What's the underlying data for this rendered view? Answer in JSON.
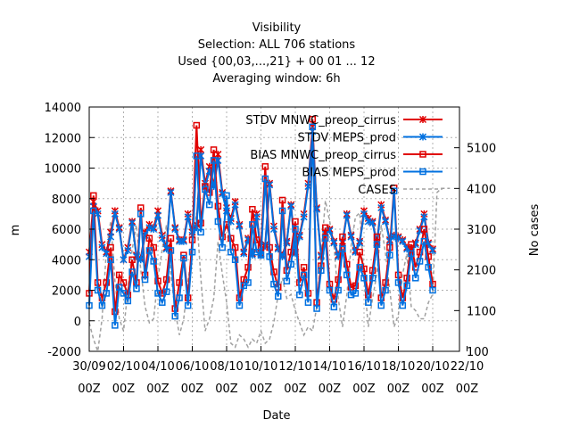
{
  "chart_data": {
    "type": "line",
    "title_lines": [
      "Visibility",
      "Selection: ALL    706 stations",
      "Used {00,03,...,21} + 00 01 ... 12",
      "Averaging window:  6h"
    ],
    "xlabel": "Date",
    "ylabel": "m",
    "y2label": "No cases",
    "x_range": [
      0,
      20
    ],
    "ylim": [
      -2000,
      14000
    ],
    "y2lim": [
      100,
      6100
    ],
    "x_ticks": [
      {
        "x": 0,
        "line1": "30/09",
        "line2": "00Z"
      },
      {
        "x": 2,
        "line1": "02/10",
        "line2": "00Z"
      },
      {
        "x": 4,
        "line1": "04/10",
        "line2": "00Z"
      },
      {
        "x": 6,
        "line1": "06/10",
        "line2": "00Z"
      },
      {
        "x": 8,
        "line1": "08/10",
        "line2": "00Z"
      },
      {
        "x": 10,
        "line1": "10/10",
        "line2": "00Z"
      },
      {
        "x": 12,
        "line1": "12/10",
        "line2": "00Z"
      },
      {
        "x": 14,
        "line1": "14/10",
        "line2": "00Z"
      },
      {
        "x": 16,
        "line1": "16/10",
        "line2": "00Z"
      },
      {
        "x": 18,
        "line1": "18/10",
        "line2": "00Z"
      },
      {
        "x": 20,
        "line1": "20/10",
        "line2": "00Z"
      },
      {
        "x": 22,
        "line1": "22/10",
        "line2": "00Z"
      }
    ],
    "y_ticks": [
      -2000,
      0,
      2000,
      4000,
      6000,
      8000,
      10000,
      12000,
      14000
    ],
    "y2_ticks": [
      100,
      1100,
      2100,
      3100,
      4100,
      5100
    ],
    "grid": true,
    "legend_position": "top-right",
    "series": [
      {
        "name": "STDV MNWC_preop_cirrus",
        "axis": "y",
        "color": "#e00000",
        "marker": "star",
        "style": "solid",
        "x": [
          0,
          0.25,
          0.5,
          0.75,
          1,
          1.25,
          1.5,
          1.75,
          2,
          2.25,
          2.5,
          2.75,
          3,
          3.25,
          3.5,
          3.75,
          4,
          4.25,
          4.5,
          4.75,
          5,
          5.25,
          5.5,
          5.75,
          6,
          6.25,
          6.5,
          6.75,
          7,
          7.25,
          7.5,
          7.75,
          8,
          8.25,
          8.5,
          8.75,
          9,
          9.25,
          9.5,
          9.75,
          10,
          10.25,
          10.5,
          10.75,
          11,
          11.25,
          11.5,
          11.75,
          12,
          12.25,
          12.5,
          12.75,
          13,
          13.25,
          13.5,
          13.75,
          14,
          14.25,
          14.5,
          14.75,
          15,
          15.25,
          15.5,
          15.75,
          16,
          16.25,
          16.5,
          16.75,
          17,
          17.25,
          17.5,
          17.75,
          18,
          18.25,
          18.5,
          18.75,
          19,
          19.25,
          19.5,
          19.75,
          20
        ],
        "y": [
          4500,
          7800,
          7200,
          5000,
          4500,
          5800,
          7200,
          6100,
          4000,
          4800,
          6500,
          4300,
          4100,
          5800,
          6300,
          6100,
          7200,
          5600,
          4800,
          8500,
          6100,
          5300,
          5300,
          7000,
          5800,
          6300,
          11200,
          9000,
          10100,
          8900,
          10900,
          8400,
          7400,
          6700,
          7800,
          6300,
          4500,
          5400,
          4400,
          7000,
          4400,
          5000,
          9000,
          6200,
          4800,
          4300,
          5200,
          7600,
          4500,
          5600,
          7000,
          9000,
          12700,
          7400,
          4300,
          5800,
          6000,
          5200,
          4300,
          5200,
          7000,
          5600,
          4600,
          5200,
          7200,
          6700,
          6500,
          5100,
          7600,
          6600,
          5300,
          5600,
          5500,
          5300,
          4800,
          4600,
          5100,
          6000,
          7000,
          5100,
          4700
        ]
      },
      {
        "name": "STDV MEPS_prod",
        "axis": "y",
        "color": "#0070e0",
        "marker": "star",
        "style": "solid",
        "x": [
          0,
          0.25,
          0.5,
          0.75,
          1,
          1.25,
          1.5,
          1.75,
          2,
          2.25,
          2.5,
          2.75,
          3,
          3.25,
          3.5,
          3.75,
          4,
          4.25,
          4.5,
          4.75,
          5,
          5.25,
          5.5,
          5.75,
          6,
          6.25,
          6.5,
          6.75,
          7,
          7.25,
          7.5,
          7.75,
          8,
          8.25,
          8.5,
          8.75,
          9,
          9.25,
          9.5,
          9.75,
          10,
          10.25,
          10.5,
          10.75,
          11,
          11.25,
          11.5,
          11.75,
          12,
          12.25,
          12.5,
          12.75,
          13,
          13.25,
          13.5,
          13.75,
          14,
          14.25,
          14.5,
          14.75,
          15,
          15.25,
          15.5,
          15.75,
          16,
          16.25,
          16.5,
          16.75,
          17,
          17.25,
          17.5,
          17.75,
          18,
          18.25,
          18.5,
          18.75,
          19,
          19.25,
          19.5,
          19.75,
          20
        ],
        "y": [
          4200,
          7500,
          7000,
          4800,
          4400,
          5500,
          7000,
          6000,
          4000,
          4600,
          6400,
          4200,
          4000,
          5600,
          6100,
          6000,
          6900,
          5400,
          4700,
          8400,
          6000,
          5200,
          5200,
          6800,
          5600,
          6100,
          10800,
          8800,
          9800,
          8800,
          10500,
          8300,
          7200,
          6500,
          7600,
          6200,
          4400,
          5300,
          4300,
          6800,
          4300,
          4900,
          8900,
          6000,
          4700,
          4200,
          5100,
          7500,
          4400,
          5500,
          6800,
          8800,
          12400,
          7300,
          4200,
          5700,
          5900,
          5100,
          4200,
          5100,
          6900,
          5500,
          4500,
          5100,
          7000,
          6500,
          6400,
          5000,
          7400,
          6500,
          5200,
          5500,
          5400,
          5200,
          4700,
          4500,
          5000,
          5900,
          6800,
          5000,
          4600
        ]
      },
      {
        "name": "BIAS MNWC_preop_cirrus",
        "axis": "y",
        "color": "#e00000",
        "marker": "square",
        "style": "solid",
        "x": [
          0,
          0.25,
          0.5,
          0.75,
          1,
          1.25,
          1.5,
          1.75,
          2,
          2.25,
          2.5,
          2.75,
          3,
          3.25,
          3.5,
          3.75,
          4,
          4.25,
          4.5,
          4.75,
          5,
          5.25,
          5.5,
          5.75,
          6,
          6.25,
          6.5,
          6.75,
          7,
          7.25,
          7.5,
          7.75,
          8,
          8.25,
          8.5,
          8.75,
          9,
          9.25,
          9.5,
          9.75,
          10,
          10.25,
          10.5,
          10.75,
          11,
          11.25,
          11.5,
          11.75,
          12,
          12.25,
          12.5,
          12.75,
          13,
          13.25,
          13.5,
          13.75,
          14,
          14.25,
          14.5,
          14.75,
          15,
          15.25,
          15.5,
          15.75,
          16,
          16.25,
          16.5,
          16.75,
          17,
          17.25,
          17.5,
          17.75,
          18,
          18.25,
          18.5,
          18.75,
          19,
          19.25,
          19.5,
          19.75,
          20
        ],
        "y": [
          1800,
          8200,
          2500,
          1500,
          2500,
          4800,
          600,
          3000,
          2500,
          1700,
          4000,
          2500,
          7400,
          3000,
          5400,
          4800,
          2600,
          1800,
          2700,
          5400,
          800,
          2500,
          4300,
          1500,
          5300,
          12800,
          6400,
          8800,
          8400,
          11200,
          7500,
          5500,
          6300,
          5400,
          4800,
          1500,
          2700,
          3500,
          7300,
          5300,
          4800,
          10100,
          4800,
          3200,
          2200,
          7900,
          3300,
          4500,
          6500,
          2500,
          3500,
          1800,
          13200,
          1200,
          3600,
          6100,
          2400,
          1400,
          2700,
          5500,
          3700,
          2200,
          2300,
          4500,
          3400,
          1700,
          3300,
          5500,
          1500,
          2500,
          4800,
          8700,
          3000,
          1500,
          2800,
          5000,
          3500,
          4500,
          6000,
          4200,
          2400
        ]
      },
      {
        "name": "BIAS MEPS_prod",
        "axis": "y",
        "color": "#0070e0",
        "marker": "square",
        "style": "solid",
        "x": [
          0,
          0.25,
          0.5,
          0.75,
          1,
          1.25,
          1.5,
          1.75,
          2,
          2.25,
          2.5,
          2.75,
          3,
          3.25,
          3.5,
          3.75,
          4,
          4.25,
          4.5,
          4.75,
          5,
          5.25,
          5.5,
          5.75,
          6,
          6.25,
          6.5,
          6.75,
          7,
          7.25,
          7.5,
          7.75,
          8,
          8.25,
          8.5,
          8.75,
          9,
          9.25,
          9.5,
          9.75,
          10,
          10.25,
          10.5,
          10.75,
          11,
          11.25,
          11.5,
          11.75,
          12,
          12.25,
          12.5,
          12.75,
          13,
          13.25,
          13.5,
          13.75,
          14,
          14.25,
          14.5,
          14.75,
          15,
          15.25,
          15.5,
          15.75,
          16,
          16.25,
          16.5,
          16.75,
          17,
          17.25,
          17.5,
          17.75,
          18,
          18.25,
          18.5,
          18.75,
          19,
          19.25,
          19.5,
          19.75,
          20
        ],
        "y": [
          1000,
          7200,
          2000,
          1000,
          1800,
          4000,
          -300,
          2200,
          1800,
          1300,
          3200,
          2100,
          7000,
          2700,
          4600,
          3900,
          1800,
          1200,
          1900,
          4600,
          300,
          1500,
          4100,
          1000,
          4500,
          10800,
          5800,
          8600,
          7600,
          10500,
          6500,
          4800,
          8200,
          4500,
          4000,
          1000,
          2300,
          2500,
          6300,
          4500,
          4300,
          9300,
          4200,
          2400,
          1600,
          7200,
          2600,
          3700,
          6000,
          1700,
          3000,
          1200,
          12700,
          800,
          3300,
          5400,
          2000,
          900,
          2000,
          4700,
          3000,
          1700,
          1800,
          3500,
          2800,
          1200,
          2800,
          5000,
          1000,
          2000,
          4300,
          8500,
          2500,
          1000,
          2300,
          4400,
          2800,
          3900,
          5200,
          3500,
          2000
        ]
      },
      {
        "name": "CASES",
        "axis": "y2",
        "color": "#a0a0a0",
        "marker": "none",
        "style": "dashed",
        "x": [
          0,
          0.25,
          0.5,
          0.75,
          1,
          1.25,
          1.5,
          1.75,
          2,
          2.25,
          2.5,
          2.75,
          3,
          3.25,
          3.5,
          3.75,
          4,
          4.25,
          4.5,
          4.75,
          5,
          5.25,
          5.5,
          5.75,
          6,
          6.25,
          6.5,
          6.75,
          7,
          7.25,
          7.5,
          7.75,
          8,
          8.25,
          8.5,
          8.75,
          9,
          9.25,
          9.5,
          9.75,
          10,
          10.25,
          10.5,
          10.75,
          11,
          11.25,
          11.5,
          11.75,
          12,
          12.25,
          12.5,
          12.75,
          13,
          13.25,
          13.5,
          13.75,
          14,
          14.25,
          14.5,
          14.75,
          15,
          15.25,
          15.5,
          15.75,
          16,
          16.25,
          16.5,
          16.75,
          17,
          17.25,
          17.5,
          17.75,
          18,
          18.25,
          18.5,
          18.75,
          19,
          19.25,
          19.5,
          19.75,
          20,
          20.25,
          20.5,
          20.75,
          21
        ],
        "y": [
          800,
          400,
          100,
          900,
          2600,
          3300,
          1800,
          900,
          600,
          1600,
          2600,
          3200,
          2100,
          1200,
          800,
          900,
          1900,
          2600,
          3200,
          2000,
          1100,
          500,
          900,
          1800,
          2600,
          3500,
          1900,
          600,
          900,
          1400,
          2800,
          2000,
          1300,
          300,
          200,
          500,
          400,
          200,
          400,
          300,
          600,
          300,
          400,
          800,
          1500,
          1900,
          1400,
          1500,
          1100,
          800,
          500,
          700,
          600,
          1200,
          2500,
          3800,
          3300,
          2700,
          1400,
          700,
          1500,
          2700,
          3400,
          3500,
          1900,
          700,
          1400,
          2000,
          3200,
          2500,
          1600,
          700,
          1000,
          2000,
          2500,
          1200,
          1100,
          900,
          900,
          1300,
          1500,
          4000,
          4100,
          4100,
          4100
        ]
      }
    ]
  }
}
